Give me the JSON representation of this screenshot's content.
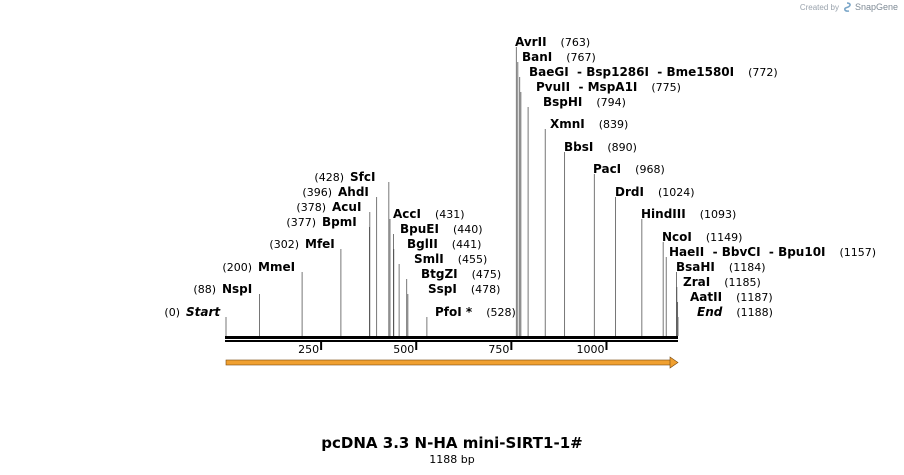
{
  "header": {
    "credit_prefix": "Created by",
    "credit_brand": "SnapGene",
    "logo_icon": "snapgene-logo-icon"
  },
  "map": {
    "title": "pcDNA 3.3 N-HA mini-SIRT1-1#",
    "length_label": "1188 bp",
    "length_bp": 1188,
    "ticks": [
      {
        "pos": 250,
        "label": "250"
      },
      {
        "pos": 500,
        "label": "500"
      },
      {
        "pos": 750,
        "label": "750"
      },
      {
        "pos": 1000,
        "label": "1000"
      }
    ],
    "feature": {
      "name": "orange-feature-arrow",
      "start": 0,
      "end": 1188,
      "color": "#f0a030"
    },
    "sites": [
      {
        "name": "Start",
        "pos_label": "(0)",
        "pos": 0,
        "italic": true
      },
      {
        "name": "NspI",
        "pos_label": "(88)",
        "pos": 88
      },
      {
        "name": "MmeI",
        "pos_label": "(200)",
        "pos": 200
      },
      {
        "name": "MfeI",
        "pos_label": "(302)",
        "pos": 302
      },
      {
        "name": "BpmI",
        "pos_label": "(377)",
        "pos": 377
      },
      {
        "name": "AcuI",
        "pos_label": "(378)",
        "pos": 378
      },
      {
        "name": "AhdI",
        "pos_label": "(396)",
        "pos": 396
      },
      {
        "name": "SfcI",
        "pos_label": "(428)",
        "pos": 428
      },
      {
        "name": "AccI",
        "pos_label": "(431)",
        "pos": 431
      },
      {
        "name": "BpuEI",
        "pos_label": "(440)",
        "pos": 440
      },
      {
        "name": "BglII",
        "pos_label": "(441)",
        "pos": 441
      },
      {
        "name": "SmlI",
        "pos_label": "(455)",
        "pos": 455
      },
      {
        "name": "BtgZI",
        "pos_label": "(475)",
        "pos": 475
      },
      {
        "name": "SspI",
        "pos_label": "(478)",
        "pos": 478
      },
      {
        "name": "PfoI *",
        "pos_label": "(528)",
        "pos": 528
      },
      {
        "name": "AvrII",
        "pos_label": "(763)",
        "pos": 763
      },
      {
        "name": "BanI",
        "pos_label": "(767)",
        "pos": 767
      },
      {
        "name": "BaeGI  - Bsp1286I  - Bme1580I",
        "pos_label": "(772)",
        "pos": 772
      },
      {
        "name": "PvuII  - MspA1I",
        "pos_label": "(775)",
        "pos": 775
      },
      {
        "name": "BspHI",
        "pos_label": "(794)",
        "pos": 794
      },
      {
        "name": "XmnI",
        "pos_label": "(839)",
        "pos": 839
      },
      {
        "name": "BbsI",
        "pos_label": "(890)",
        "pos": 890
      },
      {
        "name": "PacI",
        "pos_label": "(968)",
        "pos": 968
      },
      {
        "name": "DrdI",
        "pos_label": "(1024)",
        "pos": 1024
      },
      {
        "name": "HindIII",
        "pos_label": "(1093)",
        "pos": 1093
      },
      {
        "name": "NcoI",
        "pos_label": "(1149)",
        "pos": 1149
      },
      {
        "name": "HaeII  - BbvCI  - Bpu10I",
        "pos_label": "(1157)",
        "pos": 1157
      },
      {
        "name": "BsaHI",
        "pos_label": "(1184)",
        "pos": 1184
      },
      {
        "name": "ZraI",
        "pos_label": "(1185)",
        "pos": 1185
      },
      {
        "name": "AatII",
        "pos_label": "(1187)",
        "pos": 1187
      },
      {
        "name": "End",
        "pos_label": "(1188)",
        "pos": 1188,
        "italic": true
      }
    ]
  }
}
